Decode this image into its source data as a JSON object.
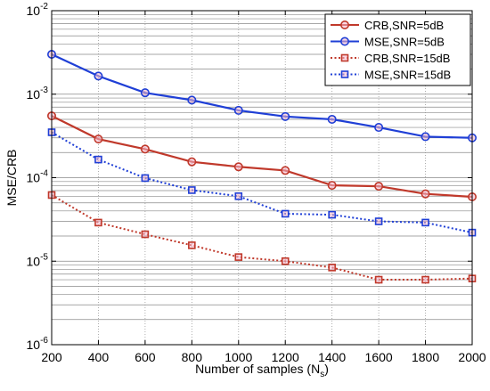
{
  "chart_data": {
    "type": "line",
    "xlabel": "Number of samples (N",
    "xlabel_sub": "s",
    "xlabel_close": ")",
    "ylabel": "MSE/CRB",
    "yscale": "log",
    "xlim": [
      200,
      2000
    ],
    "ylim": [
      1e-06,
      0.01
    ],
    "grid": true,
    "legend_position": "top-right",
    "x": [
      200,
      400,
      600,
      800,
      1000,
      1200,
      1400,
      1600,
      1800,
      2000
    ],
    "x_tick_labels": [
      "200",
      "400",
      "600",
      "800",
      "1000",
      "1200",
      "1400",
      "1600",
      "1800",
      "2000"
    ],
    "y_ticks": [
      {
        "value": 1e-06,
        "base": "10",
        "exp": "-6"
      },
      {
        "value": 1e-05,
        "base": "10",
        "exp": "-5"
      },
      {
        "value": 0.0001,
        "base": "10",
        "exp": "-4"
      },
      {
        "value": 0.001,
        "base": "10",
        "exp": "-3"
      },
      {
        "value": 0.01,
        "base": "10",
        "exp": "-2"
      }
    ],
    "series": [
      {
        "name": "CRB,SNR=5dB",
        "color": "#c0392b",
        "marker": "circle",
        "line": "solid",
        "values": [
          0.00055,
          0.00029,
          0.00022,
          0.000155,
          0.000135,
          0.000122,
          8.1e-05,
          7.9e-05,
          6.4e-05,
          5.9e-05
        ]
      },
      {
        "name": "MSE,SNR=5dB",
        "color": "#1f3fd6",
        "marker": "circle",
        "line": "solid",
        "values": [
          0.003,
          0.00165,
          0.00104,
          0.00085,
          0.00064,
          0.00054,
          0.0005,
          0.0004,
          0.00031,
          0.0003
        ]
      },
      {
        "name": "CRB,SNR=15dB",
        "color": "#c0392b",
        "marker": "square",
        "line": "dotted",
        "values": [
          6.2e-05,
          2.9e-05,
          2.1e-05,
          1.55e-05,
          1.12e-05,
          1e-05,
          8.4e-06,
          6e-06,
          6e-06,
          6.2e-06
        ]
      },
      {
        "name": "MSE,SNR=15dB",
        "color": "#1f3fd6",
        "marker": "square",
        "line": "dotted",
        "values": [
          0.00035,
          0.000165,
          9.9e-05,
          7.1e-05,
          6e-05,
          3.7e-05,
          3.6e-05,
          3e-05,
          2.9e-05,
          2.2e-05
        ]
      }
    ]
  }
}
